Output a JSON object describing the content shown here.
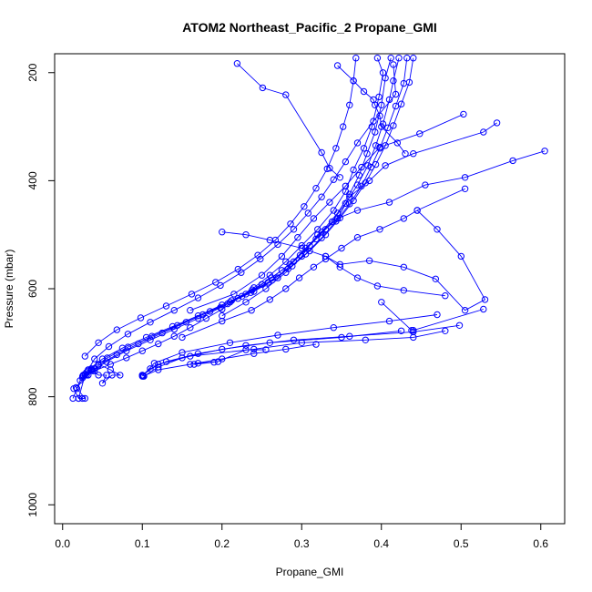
{
  "chart_data": {
    "type": "line",
    "title": "ATOM2 Northeast_Pacific_2 Propane_GMI",
    "xlabel": "Propane_GMI",
    "ylabel": "Pressure (mbar)",
    "xlim": [
      -0.01,
      0.63
    ],
    "ylim": [
      1035,
      165
    ],
    "y_reversed": true,
    "x_ticks": [
      0.0,
      0.1,
      0.2,
      0.3,
      0.4,
      0.5,
      0.6
    ],
    "x_tick_labels": [
      "0.0",
      "0.1",
      "0.2",
      "0.3",
      "0.4",
      "0.5",
      "0.6"
    ],
    "y_ticks": [
      200,
      400,
      600,
      800,
      1000
    ],
    "y_tick_labels": [
      "200",
      "400",
      "600",
      "800",
      "1000"
    ],
    "series_color": "#0000ff",
    "grid": false,
    "series": [
      {
        "x": [
          0.219,
          0.251,
          0.28,
          0.325,
          0.335,
          0.348
        ],
        "y": [
          183,
          228,
          241,
          348,
          377,
          394
        ]
      },
      {
        "x": [
          0.605,
          0.565,
          0.505,
          0.455,
          0.41,
          0.37,
          0.345,
          0.33,
          0.31,
          0.29,
          0.27,
          0.24,
          0.21
        ],
        "y": [
          345,
          363,
          394,
          408,
          440,
          455,
          470,
          490,
          520,
          550,
          580,
          605,
          625
        ]
      },
      {
        "x": [
          0.545,
          0.528,
          0.44,
          0.405,
          0.385,
          0.36,
          0.345,
          0.32,
          0.3,
          0.28,
          0.255,
          0.23,
          0.2
        ],
        "y": [
          293,
          310,
          350,
          372,
          400,
          430,
          470,
          500,
          540,
          570,
          600,
          625,
          650
        ]
      },
      {
        "x": [
          0.503,
          0.448,
          0.398,
          0.375,
          0.355,
          0.335,
          0.315,
          0.295,
          0.275,
          0.25,
          0.215,
          0.16
        ],
        "y": [
          277,
          313,
          338,
          375,
          410,
          440,
          470,
          505,
          540,
          575,
          610,
          640
        ]
      },
      {
        "x": [
          0.505,
          0.445,
          0.428,
          0.398,
          0.37,
          0.35,
          0.33,
          0.315,
          0.297,
          0.28,
          0.26,
          0.237,
          0.2,
          0.15
        ],
        "y": [
          415,
          455,
          470,
          490,
          505,
          525,
          545,
          560,
          580,
          600,
          620,
          640,
          660,
          690
        ]
      },
      {
        "x": [
          0.445,
          0.47,
          0.5,
          0.53,
          0.505,
          0.468,
          0.428,
          0.385,
          0.348,
          0.33,
          0.3,
          0.26,
          0.23,
          0.2
        ],
        "y": [
          455,
          490,
          540,
          620,
          640,
          582,
          560,
          548,
          555,
          540,
          525,
          510,
          500,
          495
        ]
      },
      {
        "x": [
          0.528,
          0.44,
          0.438,
          0.4
        ],
        "y": [
          638,
          677,
          677,
          625
        ]
      },
      {
        "x": [
          0.48,
          0.428,
          0.395,
          0.37,
          0.348,
          0.33
        ],
        "y": [
          613,
          603,
          595,
          580,
          560,
          540
        ]
      },
      {
        "x": [
          0.48,
          0.44,
          0.38,
          0.3,
          0.24,
          0.16,
          0.12,
          0.1
        ],
        "y": [
          678,
          690,
          695,
          700,
          712,
          725,
          740,
          760
        ]
      },
      {
        "x": [
          0.498,
          0.44,
          0.36,
          0.29,
          0.23,
          0.17,
          0.13,
          0.11,
          0.1
        ],
        "y": [
          668,
          680,
          688,
          695,
          705,
          720,
          735,
          748,
          760
        ]
      },
      {
        "x": [
          0.47,
          0.41,
          0.34,
          0.27,
          0.21,
          0.15,
          0.115,
          0.1
        ],
        "y": [
          648,
          660,
          672,
          686,
          700,
          718,
          738,
          762
        ]
      },
      {
        "x": [
          0.425,
          0.35,
          0.26,
          0.2,
          0.15,
          0.12,
          0.102
        ],
        "y": [
          678,
          690,
          700,
          712,
          728,
          745,
          762
        ]
      },
      {
        "x": [
          0.318,
          0.28,
          0.24,
          0.2,
          0.16,
          0.12,
          0.101
        ],
        "y": [
          703,
          712,
          720,
          730,
          740,
          750,
          762
        ]
      },
      {
        "x": [
          0.255,
          0.23,
          0.195,
          0.17,
          0.165,
          0.19
        ],
        "y": [
          713,
          713,
          735,
          738,
          740,
          736
        ]
      },
      {
        "x": [
          0.345,
          0.365,
          0.378,
          0.39,
          0.392,
          0.398,
          0.4,
          0.42,
          0.43
        ],
        "y": [
          187,
          215,
          235,
          250,
          260,
          280,
          300,
          330,
          350
        ]
      },
      {
        "x": [
          0.395,
          0.402,
          0.397,
          0.388,
          0.378,
          0.365,
          0.355,
          0.34,
          0.32,
          0.3,
          0.28,
          0.26,
          0.24,
          0.22,
          0.2,
          0.18,
          0.16,
          0.14,
          0.12,
          0.1,
          0.08,
          0.06,
          0.04
        ],
        "y": [
          173,
          200,
          245,
          300,
          340,
          380,
          420,
          455,
          490,
          520,
          550,
          575,
          598,
          618,
          638,
          655,
          672,
          688,
          702,
          715,
          728,
          740,
          752
        ]
      },
      {
        "x": [
          0.412,
          0.405,
          0.4,
          0.392,
          0.382,
          0.372,
          0.36,
          0.345,
          0.325,
          0.305,
          0.285,
          0.262,
          0.238,
          0.212,
          0.185,
          0.155,
          0.125,
          0.095,
          0.068,
          0.045,
          0.032
        ],
        "y": [
          173,
          210,
          260,
          310,
          350,
          390,
          425,
          460,
          495,
          525,
          555,
          580,
          602,
          622,
          642,
          662,
          682,
          702,
          722,
          742,
          760
        ]
      },
      {
        "x": [
          0.422,
          0.415,
          0.41,
          0.402,
          0.393,
          0.383,
          0.37,
          0.355,
          0.338,
          0.318,
          0.298,
          0.275,
          0.25,
          0.225,
          0.198,
          0.17,
          0.14,
          0.11,
          0.08,
          0.055,
          0.038,
          0.025
        ],
        "y": [
          173,
          215,
          250,
          295,
          335,
          372,
          408,
          442,
          476,
          508,
          538,
          566,
          592,
          614,
          635,
          655,
          675,
          695,
          715,
          735,
          752,
          765
        ]
      },
      {
        "x": [
          0.432,
          0.428,
          0.418,
          0.408,
          0.398,
          0.387,
          0.375,
          0.36,
          0.343,
          0.325,
          0.305,
          0.283,
          0.258,
          0.23,
          0.2,
          0.17,
          0.138,
          0.105,
          0.075,
          0.05,
          0.032,
          0.018
        ],
        "y": [
          173,
          220,
          262,
          302,
          340,
          375,
          410,
          443,
          475,
          506,
          536,
          563,
          588,
          610,
          630,
          650,
          670,
          690,
          710,
          730,
          750,
          785
        ]
      },
      {
        "x": [
          0.44,
          0.435,
          0.425,
          0.415,
          0.405,
          0.393,
          0.38,
          0.365,
          0.348,
          0.33,
          0.31,
          0.288,
          0.263,
          0.236,
          0.207,
          0.176,
          0.144,
          0.112,
          0.082,
          0.056,
          0.036,
          0.022,
          0.013
        ],
        "y": [
          173,
          218,
          258,
          298,
          335,
          370,
          404,
          437,
          469,
          500,
          530,
          558,
          584,
          607,
          628,
          648,
          668,
          688,
          708,
          728,
          748,
          770,
          803
        ]
      },
      {
        "x": [
          0.368,
          0.365,
          0.36,
          0.352,
          0.343,
          0.332,
          0.318,
          0.303,
          0.286,
          0.267,
          0.245,
          0.22,
          0.192,
          0.162,
          0.13,
          0.098,
          0.068,
          0.045,
          0.028
        ],
        "y": [
          173,
          215,
          260,
          300,
          340,
          378,
          414,
          448,
          480,
          510,
          538,
          564,
          588,
          610,
          632,
          654,
          676,
          700,
          725
        ]
      },
      {
        "x": [
          0.415,
          0.418,
          0.39,
          0.37,
          0.355,
          0.34,
          0.325,
          0.308,
          0.29,
          0.27,
          0.248,
          0.224,
          0.198,
          0.17,
          0.14,
          0.11,
          0.082,
          0.058,
          0.04,
          0.028,
          0.02
        ],
        "y": [
          185,
          240,
          290,
          330,
          365,
          398,
          430,
          460,
          490,
          518,
          545,
          570,
          594,
          617,
          640,
          662,
          684,
          707,
          730,
          760,
          803
        ]
      },
      {
        "x": [
          0.036,
          0.045,
          0.055,
          0.05,
          0.062,
          0.072,
          0.06,
          0.045
        ],
        "y": [
          750,
          760,
          760,
          775,
          760,
          760,
          750,
          740
        ]
      },
      {
        "x": [
          0.014,
          0.02,
          0.025,
          0.028,
          0.017
        ],
        "y": [
          785,
          803,
          803,
          803,
          783
        ]
      },
      {
        "x": [
          0.037,
          0.04,
          0.036,
          0.03,
          0.026
        ],
        "y": [
          750,
          748,
          750,
          760,
          760
        ]
      },
      {
        "x": [
          0.032,
          0.028,
          0.025,
          0.026,
          0.03
        ],
        "y": [
          752,
          758,
          762,
          760,
          755
        ]
      }
    ]
  }
}
